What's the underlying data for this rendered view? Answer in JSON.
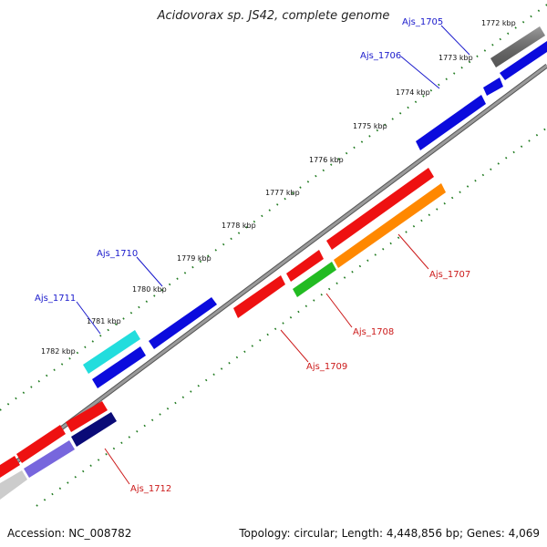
{
  "title": "Acidovorax sp. JS42, complete genome",
  "footer": {
    "accession": "Accession: NC_008782",
    "summary": "Topology: circular; Length: 4,448,856 bp; Genes: 4,069"
  },
  "colors": {
    "background": "#ffffff",
    "backbone": "#8c8c8c",
    "tick": "#1f7a1f",
    "forward_label": "#1a1acc",
    "reverse_label": "#cc1a1a"
  },
  "ticks": [
    "1772 kbp",
    "1773 kbp",
    "1774 kbp",
    "1775 kbp",
    "1776 kbp",
    "1777 kbp",
    "1778 kbp",
    "1779 kbp",
    "1780 kbp",
    "1781 kbp",
    "1782 kbp"
  ],
  "genes": {
    "forward": [
      "Ajs_1705",
      "Ajs_1706",
      "Ajs_1710",
      "Ajs_1711"
    ],
    "reverse": [
      "Ajs_1707",
      "Ajs_1708",
      "Ajs_1709",
      "Ajs_1712"
    ]
  }
}
